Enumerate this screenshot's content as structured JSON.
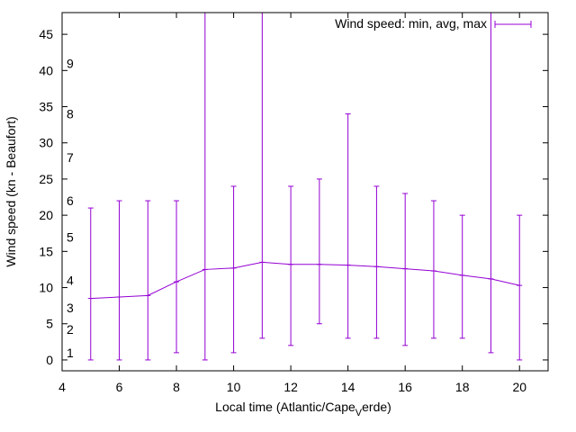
{
  "chart_data": {
    "type": "line",
    "title": "",
    "xlabel": "Local time (Atlantic/Cape_Verde)",
    "xlabel_main": "Local time (Atlantic/Cape",
    "xlabel_sub": "V",
    "xlabel_tail": "erde)",
    "ylabel": "Wind speed (kn - Beaufort)",
    "xlim": [
      4,
      21
    ],
    "ylim": [
      -1.5,
      48
    ],
    "x_ticks": [
      4,
      6,
      8,
      10,
      12,
      14,
      16,
      18,
      20
    ],
    "y_ticks": [
      0,
      5,
      10,
      15,
      20,
      25,
      30,
      35,
      40,
      45
    ],
    "beaufort_labels": [
      {
        "label": "1",
        "y": 1
      },
      {
        "label": "2",
        "y": 4.2
      },
      {
        "label": "3",
        "y": 7.2
      },
      {
        "label": "4",
        "y": 11
      },
      {
        "label": "5",
        "y": 17
      },
      {
        "label": "6",
        "y": 22
      },
      {
        "label": "7",
        "y": 28
      },
      {
        "label": "8",
        "y": 34
      },
      {
        "label": "9",
        "y": 41
      }
    ],
    "grid": false,
    "legend_position": "top-right",
    "series": [
      {
        "name": "Wind speed: min, avg, max",
        "color": "#9400d3",
        "x": [
          5,
          6,
          7,
          8,
          9,
          10,
          11,
          12,
          13,
          14,
          15,
          16,
          17,
          18,
          19,
          20
        ],
        "avg": [
          8.5,
          8.7,
          8.9,
          10.8,
          12.5,
          12.7,
          13.5,
          13.2,
          13.2,
          13.1,
          12.9,
          12.6,
          12.3,
          11.7,
          11.2,
          10.3
        ],
        "min": [
          0,
          0,
          0,
          1,
          0,
          1,
          3,
          2,
          5,
          3,
          3,
          2,
          3,
          3,
          1,
          0
        ],
        "max": [
          21,
          22,
          22,
          22,
          48,
          24,
          48,
          24,
          25,
          34,
          24,
          23,
          22,
          20,
          48,
          20
        ]
      }
    ]
  }
}
